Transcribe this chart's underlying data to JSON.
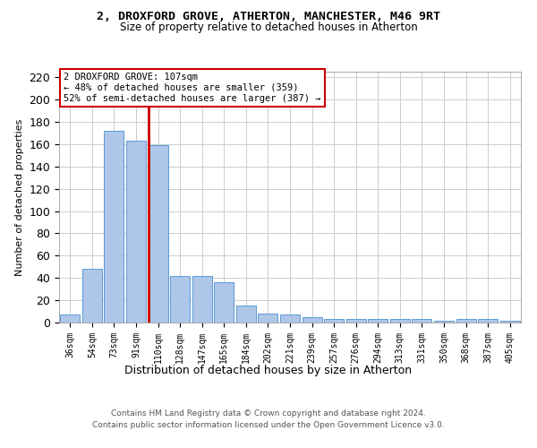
{
  "title_line1": "2, DROXFORD GROVE, ATHERTON, MANCHESTER, M46 9RT",
  "title_line2": "Size of property relative to detached houses in Atherton",
  "xlabel": "Distribution of detached houses by size in Atherton",
  "ylabel": "Number of detached properties",
  "footer_line1": "Contains HM Land Registry data © Crown copyright and database right 2024.",
  "footer_line2": "Contains public sector information licensed under the Open Government Licence v3.0.",
  "categories": [
    "36sqm",
    "54sqm",
    "73sqm",
    "91sqm",
    "110sqm",
    "128sqm",
    "147sqm",
    "165sqm",
    "184sqm",
    "202sqm",
    "221sqm",
    "239sqm",
    "257sqm",
    "276sqm",
    "294sqm",
    "313sqm",
    "331sqm",
    "350sqm",
    "368sqm",
    "387sqm",
    "405sqm"
  ],
  "values": [
    7,
    48,
    172,
    163,
    159,
    42,
    42,
    36,
    15,
    8,
    7,
    5,
    3,
    3,
    3,
    3,
    3,
    2,
    3,
    3,
    2
  ],
  "bar_color": "#aec6e8",
  "bar_edge_color": "#5b9bd5",
  "red_line_x": 3.55,
  "red_line_color": "#cc0000",
  "annotation_text": "2 DROXFORD GROVE: 107sqm\n← 48% of detached houses are smaller (359)\n52% of semi-detached houses are larger (387) →",
  "annotation_box_color": "#ffffff",
  "annotation_box_edge": "#cc0000",
  "ylim": [
    0,
    225
  ],
  "yticks": [
    0,
    20,
    40,
    60,
    80,
    100,
    120,
    140,
    160,
    180,
    200,
    220
  ],
  "background_color": "#ffffff",
  "grid_color": "#cccccc",
  "title1_fontsize": 9.5,
  "title2_fontsize": 8.5,
  "ylabel_fontsize": 8,
  "xlabel_fontsize": 9,
  "tick_fontsize": 7,
  "footer_fontsize": 6.5,
  "ann_fontsize": 7.5
}
